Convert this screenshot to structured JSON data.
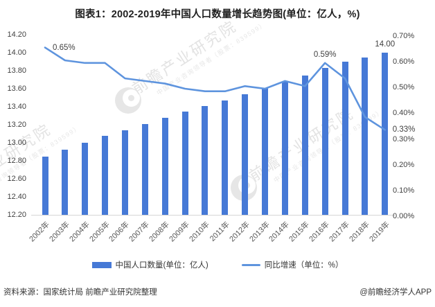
{
  "title": "图表1：2002-2019年中国人口数量增长趋势图(单位：亿人，%)",
  "chart_data": {
    "type": "bar+line",
    "title": "图表1：2002-2019年中国人口数量增长趋势图(单位：亿人，%)",
    "categories": [
      "2002年",
      "2003年",
      "2004年",
      "2005年",
      "2006年",
      "2007年",
      "2008年",
      "2009年",
      "2010年",
      "2011年",
      "2012年",
      "2013年",
      "2014年",
      "2015年",
      "2016年",
      "2017年",
      "2018年",
      "2019年"
    ],
    "series": [
      {
        "name": "中国人口数量(单位：亿人)",
        "type": "bar",
        "axis": "left",
        "values": [
          12.85,
          12.92,
          13.0,
          13.08,
          13.14,
          13.21,
          13.28,
          13.35,
          13.41,
          13.47,
          13.54,
          13.61,
          13.68,
          13.75,
          13.83,
          13.9,
          13.95,
          14.0
        ]
      },
      {
        "name": "同比增速（单位：%）",
        "type": "line",
        "axis": "right",
        "values": [
          0.65,
          0.6,
          0.59,
          0.59,
          0.53,
          0.52,
          0.51,
          0.49,
          0.48,
          0.48,
          0.5,
          0.49,
          0.52,
          0.5,
          0.59,
          0.53,
          0.38,
          0.33
        ]
      }
    ],
    "left_axis": {
      "min": 12.2,
      "max": 14.2,
      "step": 0.2,
      "ticks": [
        "14.20",
        "14.00",
        "13.80",
        "13.60",
        "13.40",
        "13.20",
        "13.00",
        "12.80",
        "12.60",
        "12.40",
        "12.20"
      ]
    },
    "right_axis": {
      "min": 0.0,
      "max": 0.7,
      "step": 0.1,
      "ticks": [
        "0.70%",
        "0.60%",
        "0.50%",
        "0.40%",
        "0.30%",
        "0.20%",
        "0.10%",
        "0.00%"
      ]
    },
    "grid": false,
    "legend_position": "bottom",
    "annotations": [
      {
        "id": "growth-2002",
        "series": "line",
        "index": 0,
        "text": "0.65%",
        "placement": "right"
      },
      {
        "id": "growth-2016",
        "series": "line",
        "index": 14,
        "text": "0.59%",
        "placement": "above"
      },
      {
        "id": "population-2019",
        "series": "bar",
        "index": 17,
        "text": "14.00",
        "placement": "above"
      },
      {
        "id": "growth-2019",
        "series": "line",
        "index": 17,
        "text": "0.33%",
        "placement": "right"
      }
    ]
  },
  "colors": {
    "bar": "#4679d6",
    "line": "#5e94de",
    "axis_line": "#d5d5d5",
    "tick_text": "#404040",
    "xlabel_text": "#595959",
    "title_text": "#1f1f1f",
    "footer_text": "#333333",
    "watermark": "#e3e3e3"
  },
  "footer": {
    "source": "资料来源：国家统计局 前瞻产业研究院整理",
    "credit": "@前瞻经济学人APP"
  },
  "watermark": {
    "text": "前瞻产业研究院",
    "subtext": "中国产业咨询领导者（股票：839599）"
  }
}
